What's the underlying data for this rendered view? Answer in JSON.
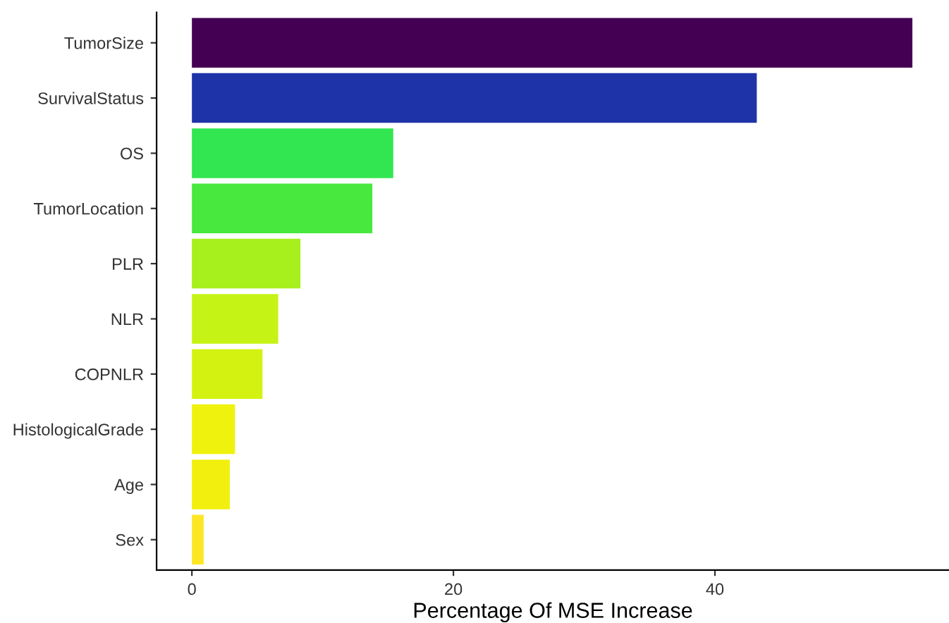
{
  "chart_data": {
    "type": "bar",
    "orientation": "horizontal",
    "xlabel": "Percentage Of MSE Increase",
    "categories": [
      "TumorSize",
      "SurvivalStatus",
      "OS",
      "TumorLocation",
      "PLR",
      "NLR",
      "COPNLR",
      "HistologicalGrade",
      "Age",
      "Sex"
    ],
    "values": [
      55.1,
      43.2,
      15.4,
      13.8,
      8.3,
      6.6,
      5.4,
      3.3,
      2.9,
      0.9
    ],
    "colors": [
      "#440154",
      "#1f33a8",
      "#31e651",
      "#48e83e",
      "#a8ef1e",
      "#c6f316",
      "#d3f211",
      "#eff20d",
      "#f2ef0e",
      "#fde725"
    ],
    "xlim": [
      -2.7,
      57.9
    ],
    "xticks": [
      0,
      20,
      40
    ],
    "grid": false
  }
}
